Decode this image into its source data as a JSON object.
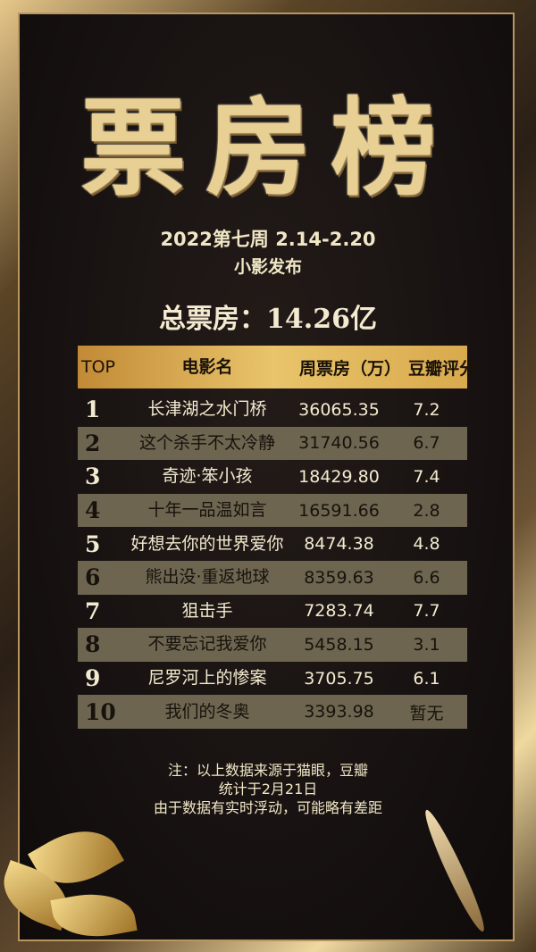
{
  "poster": {
    "title": "票房榜",
    "period": "2022第七周  2.14-2.20",
    "publisher": "小影发布",
    "total": "总票房：14.26亿"
  },
  "table": {
    "headers": [
      "TOP",
      "电影名",
      "周票房（万）",
      "豆瓣评分"
    ],
    "rows": [
      {
        "rank": "1",
        "name": "长津湖之水门桥",
        "box": "36065.35",
        "score": "7.2"
      },
      {
        "rank": "2",
        "name": "这个杀手不太冷静",
        "box": "31740.56",
        "score": "6.7"
      },
      {
        "rank": "3",
        "name": "奇迹·笨小孩",
        "box": "18429.80",
        "score": "7.4"
      },
      {
        "rank": "4",
        "name": "十年一品温如言",
        "box": "16591.66",
        "score": "2.8"
      },
      {
        "rank": "5",
        "name": "好想去你的世界爱你",
        "box": "8474.38",
        "score": "4.8"
      },
      {
        "rank": "6",
        "name": "熊出没·重返地球",
        "box": "8359.63",
        "score": "6.6"
      },
      {
        "rank": "7",
        "name": "狙击手",
        "box": "7283.74",
        "score": "7.7"
      },
      {
        "rank": "8",
        "name": "不要忘记我爱你",
        "box": "5458.15",
        "score": "3.1"
      },
      {
        "rank": "9",
        "name": "尼罗河上的惨案",
        "box": "3705.75",
        "score": "6.1"
      },
      {
        "rank": "10",
        "name": "我们的冬奥",
        "box": "3393.98",
        "score": "暂无"
      }
    ]
  },
  "notes": [
    "注：以上数据来源于猫眼，豆瓣",
    "统计于2月21日",
    "由于数据有实时浮动，可能略有差距"
  ],
  "colors": {
    "gold": "#e8cf93",
    "header": "#e9c46a",
    "alt_row": "#6d6550",
    "background": "#171211"
  }
}
